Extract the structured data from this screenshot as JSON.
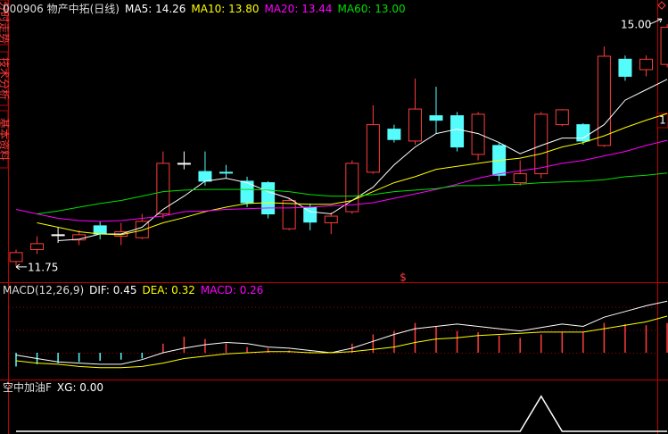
{
  "tabs": [
    "分时走势",
    "技术分析",
    "基本资料"
  ],
  "right_marker": "1",
  "chart_data": [
    {
      "type": "candlestick",
      "title": "000906 物产中拓(日线)",
      "categories": [
        null,
        null,
        null,
        null,
        null,
        null,
        null,
        null,
        null,
        null,
        null,
        null,
        null,
        null,
        null,
        null,
        null,
        null,
        null,
        null,
        null,
        null,
        null,
        null,
        null,
        null,
        null,
        null,
        null,
        null,
        null,
        null
      ],
      "open": [
        11.81,
        11.97,
        12.17,
        12.1,
        12.29,
        12.15,
        12.13,
        12.45,
        13.13,
        13.02,
        13.01,
        12.89,
        12.87,
        12.25,
        12.54,
        12.33,
        12.48,
        13.01,
        13.59,
        13.43,
        13.77,
        13.77,
        13.25,
        13.37,
        12.87,
        12.99,
        13.65,
        13.65,
        13.37,
        14.53,
        14.39,
        14.46
      ],
      "high": [
        11.97,
        12.15,
        12.27,
        12.23,
        12.35,
        12.33,
        12.45,
        13.29,
        13.29,
        13.29,
        13.11,
        12.95,
        12.89,
        12.66,
        12.59,
        12.47,
        13.17,
        13.91,
        13.65,
        14.27,
        14.16,
        13.82,
        13.82,
        13.41,
        13.17,
        13.82,
        13.86,
        13.67,
        14.7,
        14.58,
        14.58,
        15.0
      ],
      "low": [
        11.75,
        11.91,
        12.06,
        12.03,
        12.11,
        12.03,
        12.11,
        12.39,
        13.05,
        12.83,
        12.93,
        12.54,
        12.39,
        12.23,
        12.23,
        12.18,
        12.45,
        12.99,
        13.41,
        13.38,
        13.53,
        13.29,
        13.17,
        12.89,
        12.83,
        12.93,
        13.63,
        13.38,
        13.35,
        14.24,
        14.3,
        14.42
      ],
      "close": [
        11.93,
        12.05,
        12.17,
        12.17,
        12.18,
        12.21,
        12.35,
        13.13,
        13.13,
        12.89,
        13.0,
        12.6,
        12.45,
        12.63,
        12.34,
        12.42,
        13.13,
        13.65,
        13.45,
        13.86,
        13.71,
        13.35,
        13.79,
        12.97,
        12.99,
        13.79,
        13.85,
        13.43,
        14.57,
        14.3,
        14.53,
        14.96
      ],
      "up_color": "#ff3c3c",
      "down_color": "#54fcfc",
      "flat_color": "#ffffff",
      "series": [
        {
          "name": "MA5",
          "color": "#ffffff",
          "value_label": "14.26",
          "values": [
            null,
            null,
            12.09,
            12.11,
            12.18,
            12.18,
            12.27,
            12.51,
            12.69,
            12.89,
            12.93,
            12.87,
            12.75,
            12.66,
            12.48,
            12.45,
            12.63,
            12.81,
            13.11,
            13.35,
            13.53,
            13.59,
            13.53,
            13.41,
            13.26,
            13.37,
            13.47,
            13.47,
            13.65,
            13.98,
            14.12,
            14.26
          ]
        },
        {
          "name": "MA10",
          "color": "#ffff00",
          "value_label": "13.80",
          "values": [
            null,
            12.33,
            12.27,
            12.21,
            12.18,
            12.17,
            12.23,
            12.33,
            12.4,
            12.48,
            12.54,
            12.59,
            12.6,
            12.59,
            12.58,
            12.58,
            12.63,
            12.75,
            12.87,
            12.95,
            13.05,
            13.09,
            13.13,
            13.17,
            13.2,
            13.26,
            13.35,
            13.41,
            13.5,
            13.61,
            13.71,
            13.8
          ]
        },
        {
          "name": "MA20",
          "color": "#ff00ff",
          "value_label": "13.44",
          "values": [
            12.51,
            12.45,
            12.39,
            12.36,
            12.35,
            12.36,
            12.39,
            12.42,
            12.48,
            12.49,
            12.51,
            12.52,
            12.53,
            12.53,
            12.54,
            12.56,
            12.57,
            12.6,
            12.66,
            12.72,
            12.78,
            12.85,
            12.93,
            12.99,
            13.03,
            13.07,
            13.13,
            13.17,
            13.23,
            13.29,
            13.37,
            13.44
          ]
        },
        {
          "name": "MA60",
          "color": "#00e000",
          "value_label": "13.00",
          "values": [
            null,
            12.45,
            12.49,
            12.54,
            12.59,
            12.63,
            12.69,
            12.75,
            12.77,
            12.78,
            12.78,
            12.78,
            12.77,
            12.75,
            12.71,
            12.69,
            12.69,
            12.71,
            12.75,
            12.77,
            12.79,
            12.83,
            12.83,
            12.84,
            12.85,
            12.87,
            12.88,
            12.89,
            12.91,
            12.95,
            12.97,
            13.0
          ]
        }
      ],
      "annotations": [
        {
          "text": "15.00"
        },
        {
          "text": "11.75"
        },
        {
          "text": "$"
        }
      ],
      "ylim": [
        11.58,
        15.11
      ]
    },
    {
      "type": "macd",
      "title": "MACD(12,26,9)",
      "series": [
        {
          "name": "DIF",
          "color": "#ffffff",
          "value_label": "0.45",
          "values": [
            -0.02,
            -0.05,
            -0.08,
            -0.09,
            -0.1,
            -0.1,
            -0.06,
            0.0,
            0.04,
            0.07,
            0.09,
            0.08,
            0.05,
            0.04,
            0.02,
            0.0,
            0.04,
            0.1,
            0.16,
            0.21,
            0.23,
            0.25,
            0.23,
            0.21,
            0.19,
            0.22,
            0.25,
            0.23,
            0.31,
            0.36,
            0.41,
            0.45
          ]
        },
        {
          "name": "DEA",
          "color": "#ffff00",
          "value_label": "0.32",
          "values": [
            -0.07,
            -0.09,
            -0.1,
            -0.12,
            -0.13,
            -0.13,
            -0.12,
            -0.09,
            -0.05,
            -0.03,
            -0.01,
            0.0,
            0.01,
            0.01,
            0.0,
            0.0,
            0.01,
            0.03,
            0.05,
            0.09,
            0.12,
            0.13,
            0.15,
            0.16,
            0.17,
            0.18,
            0.18,
            0.18,
            0.21,
            0.24,
            0.27,
            0.32
          ]
        },
        {
          "name": "MACD",
          "color": "#ff00ff",
          "value_label": "0.26",
          "up_color": "#ff3c3c",
          "down_color": "#54fcfc",
          "values": [
            -0.12,
            -0.1,
            -0.09,
            -0.08,
            -0.07,
            -0.06,
            -0.05,
            0.08,
            0.14,
            0.12,
            0.08,
            0.05,
            0.04,
            0.02,
            0.01,
            0.01,
            0.08,
            0.16,
            0.19,
            0.26,
            0.23,
            0.19,
            0.18,
            0.15,
            0.13,
            0.16,
            0.18,
            0.18,
            0.26,
            0.25,
            0.24,
            0.26
          ]
        }
      ],
      "ylim": [
        -0.21,
        0.6
      ],
      "yticks": [
        0,
        0.2,
        0.4
      ],
      "grid_color": "#a00000"
    },
    {
      "type": "line",
      "title": "空中加油F",
      "series": [
        {
          "name": "XG",
          "color": "#ffffff",
          "value_label": "0.00",
          "values": [
            0,
            0,
            0,
            0,
            0,
            0,
            0,
            0,
            0,
            0,
            0,
            0,
            0,
            0,
            0,
            0,
            0,
            0,
            0,
            0,
            0,
            0,
            0,
            0,
            0,
            1,
            0,
            0,
            0,
            0,
            0,
            0
          ]
        }
      ],
      "ylim": [
        0,
        1.4
      ]
    }
  ]
}
